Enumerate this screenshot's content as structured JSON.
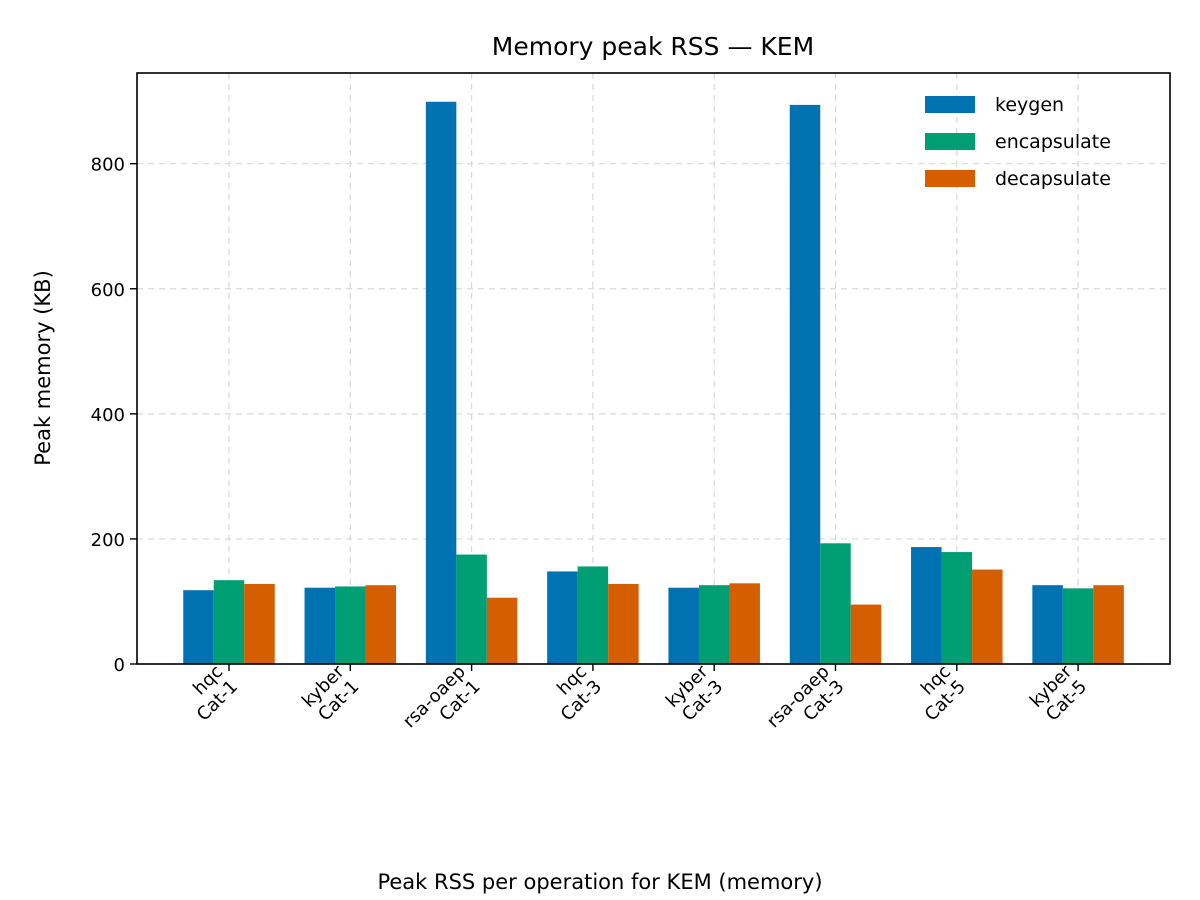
{
  "chart_data": {
    "type": "bar",
    "title": "Memory peak RSS — KEM",
    "xlabel": "",
    "ylabel": "Peak memory (KB)",
    "caption": "Peak RSS per operation for KEM (memory)",
    "categories": [
      [
        "hqc",
        "Cat-1"
      ],
      [
        "kyber",
        "Cat-1"
      ],
      [
        "rsa-oaep",
        "Cat-1"
      ],
      [
        "hqc",
        "Cat-3"
      ],
      [
        "kyber",
        "Cat-3"
      ],
      [
        "rsa-oaep",
        "Cat-3"
      ],
      [
        "hqc",
        "Cat-5"
      ],
      [
        "kyber",
        "Cat-5"
      ]
    ],
    "series": [
      {
        "name": "keygen",
        "color": "#0072b2",
        "values": [
          118,
          122,
          899,
          148,
          122,
          894,
          187,
          126
        ]
      },
      {
        "name": "encapsulate",
        "color": "#009e73",
        "values": [
          134,
          124,
          175,
          156,
          126,
          193,
          179,
          121
        ]
      },
      {
        "name": "decapsulate",
        "color": "#d55e00",
        "values": [
          128,
          126,
          106,
          128,
          129,
          95,
          151,
          126
        ]
      }
    ],
    "ylim": [
      0,
      945
    ],
    "yticks": [
      0,
      200,
      400,
      600,
      800
    ],
    "grid": true,
    "legend_position": "top-right"
  }
}
